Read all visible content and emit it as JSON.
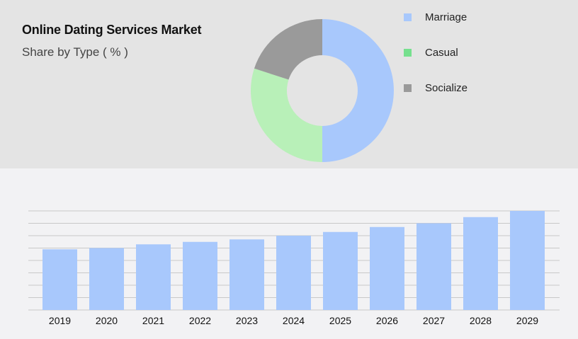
{
  "chart_data": [
    {
      "type": "pie",
      "title": "Online Dating Services Market",
      "subtitle": "Share by Type ( % )",
      "donut": true,
      "slices": [
        {
          "label": "Marriage",
          "value": 50,
          "color": "#a8c8fc"
        },
        {
          "label": "Casual",
          "value": 30,
          "color": "#b8f0b8",
          "legend_color": "#76e08e"
        },
        {
          "label": "Socialize",
          "value": 20,
          "color": "#9a9a9a"
        }
      ],
      "legend_position": "right"
    },
    {
      "type": "bar",
      "categories": [
        "2019",
        "2020",
        "2021",
        "2022",
        "2023",
        "2024",
        "2025",
        "2026",
        "2027",
        "2028",
        "2029"
      ],
      "values": [
        4.9,
        5.0,
        5.3,
        5.5,
        5.7,
        6.0,
        6.3,
        6.7,
        7.0,
        7.5,
        8.0
      ],
      "value_units": "relative (gridline units, no axis labels shown)",
      "ylim": [
        0,
        8
      ],
      "grid": true,
      "color": "#a8c8fc",
      "xlabel": "",
      "ylabel": ""
    }
  ]
}
